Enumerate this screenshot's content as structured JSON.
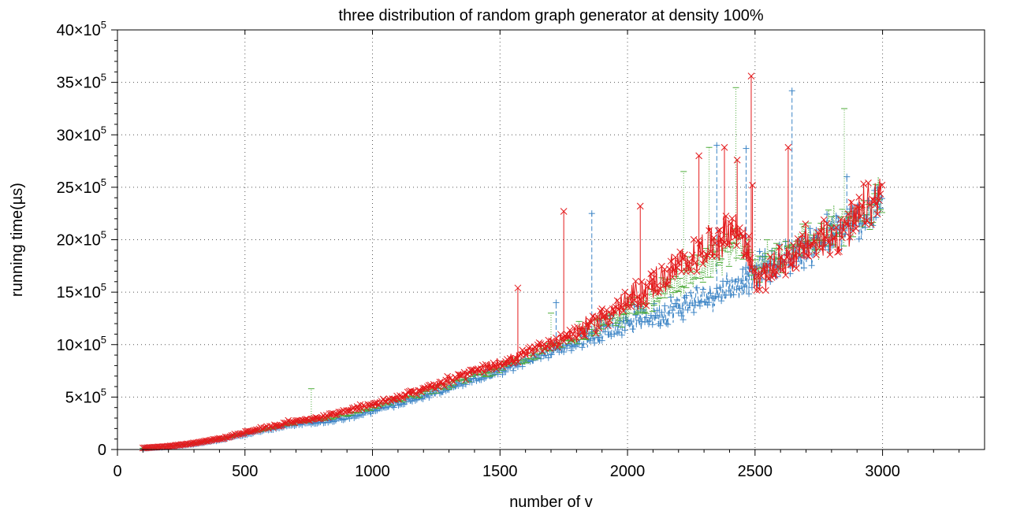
{
  "chart_data": {
    "type": "line",
    "title": "three distribution of random graph generator at density 100%",
    "xlabel": "number of v",
    "ylabel": "running time(µs)",
    "xlim": [
      0,
      3400
    ],
    "ylim": [
      0,
      4000000
    ],
    "x_ticks": [
      {
        "value": 0,
        "label": "0"
      },
      {
        "value": 500,
        "label": "500"
      },
      {
        "value": 1000,
        "label": "1000"
      },
      {
        "value": 1500,
        "label": "1500"
      },
      {
        "value": 2000,
        "label": "2000"
      },
      {
        "value": 2500,
        "label": "2500"
      },
      {
        "value": 3000,
        "label": "3000"
      }
    ],
    "y_ticks": [
      {
        "value": 0,
        "mantissa": "0",
        "exp": ""
      },
      {
        "value": 500000,
        "mantissa": "5×10",
        "exp": "5"
      },
      {
        "value": 1000000,
        "mantissa": "10×10",
        "exp": "5"
      },
      {
        "value": 1500000,
        "mantissa": "15×10",
        "exp": "5"
      },
      {
        "value": 2000000,
        "mantissa": "20×10",
        "exp": "5"
      },
      {
        "value": 2500000,
        "mantissa": "25×10",
        "exp": "5"
      },
      {
        "value": 3000000,
        "mantissa": "30×10",
        "exp": "5"
      },
      {
        "value": 3500000,
        "mantissa": "35×10",
        "exp": "5"
      },
      {
        "value": 4000000,
        "mantissa": "40×10",
        "exp": "5"
      }
    ],
    "grid": true,
    "legend": "none",
    "series": [
      {
        "color": "#3d85c6",
        "marker": "+",
        "line": "dashed",
        "x": [
          100,
          200,
          300,
          400,
          500,
          600,
          700,
          800,
          900,
          1000,
          1100,
          1200,
          1300,
          1400,
          1500,
          1600,
          1700,
          1800,
          1900,
          2000,
          2100,
          2200,
          2300,
          2400,
          2450,
          2500,
          2600,
          2700,
          2800,
          2900,
          3000
        ],
        "y": [
          10000,
          25000,
          50000,
          90000,
          140000,
          190000,
          240000,
          260000,
          300000,
          360000,
          430000,
          500000,
          580000,
          660000,
          740000,
          830000,
          920000,
          1010000,
          1110000,
          1200000,
          1250000,
          1330000,
          1420000,
          1520000,
          1590000,
          1650000,
          1770000,
          1880000,
          2000000,
          2130000,
          2300000
        ],
        "spikes": [
          {
            "x": 2350,
            "y": 2900000
          },
          {
            "x": 2465,
            "y": 2870000
          },
          {
            "x": 2645,
            "y": 3420000
          },
          {
            "x": 2860,
            "y": 2600000
          },
          {
            "x": 1860,
            "y": 2250000
          },
          {
            "x": 1720,
            "y": 1400000
          }
        ]
      },
      {
        "color": "#4eac3a",
        "marker": "_",
        "line": "dotted",
        "x": [
          100,
          200,
          300,
          400,
          500,
          600,
          700,
          800,
          900,
          1000,
          1100,
          1200,
          1300,
          1400,
          1500,
          1600,
          1700,
          1800,
          1900,
          2000,
          2100,
          2200,
          2300,
          2400,
          2450,
          2500,
          2600,
          2700,
          2800,
          2900,
          3000
        ],
        "y": [
          12000,
          28000,
          55000,
          95000,
          150000,
          200000,
          255000,
          280000,
          330000,
          390000,
          460000,
          535000,
          610000,
          690000,
          770000,
          860000,
          960000,
          1060000,
          1170000,
          1290000,
          1400000,
          1560000,
          1720000,
          1850000,
          1900000,
          1700000,
          1800000,
          1920000,
          2040000,
          2170000,
          2350000
        ],
        "spikes": [
          {
            "x": 2425,
            "y": 3450000
          },
          {
            "x": 2850,
            "y": 3250000
          },
          {
            "x": 2320,
            "y": 2880000
          },
          {
            "x": 760,
            "y": 580000
          },
          {
            "x": 1700,
            "y": 1300000
          },
          {
            "x": 2220,
            "y": 2650000
          }
        ]
      },
      {
        "color": "#e41a1c",
        "marker": "x",
        "line": "solid",
        "x": [
          100,
          200,
          300,
          400,
          500,
          600,
          700,
          800,
          900,
          1000,
          1100,
          1200,
          1300,
          1400,
          1500,
          1600,
          1700,
          1800,
          1900,
          2000,
          2100,
          2200,
          2300,
          2400,
          2450,
          2500,
          2600,
          2700,
          2800,
          2900,
          3000
        ],
        "y": [
          15000,
          30000,
          60000,
          100000,
          160000,
          215000,
          270000,
          300000,
          370000,
          420000,
          490000,
          570000,
          650000,
          730000,
          810000,
          900000,
          1000000,
          1100000,
          1230000,
          1380000,
          1540000,
          1700000,
          1880000,
          2050000,
          2020000,
          1600000,
          1750000,
          1900000,
          2000000,
          2150000,
          2400000
        ],
        "spikes": [
          {
            "x": 2485,
            "y": 3560000
          },
          {
            "x": 2380,
            "y": 2880000
          },
          {
            "x": 2630,
            "y": 2880000
          },
          {
            "x": 1750,
            "y": 2270000
          },
          {
            "x": 1570,
            "y": 1540000
          },
          {
            "x": 2430,
            "y": 2760000
          },
          {
            "x": 2280,
            "y": 2800000
          },
          {
            "x": 2050,
            "y": 2320000
          },
          {
            "x": 2490,
            "y": 2520000
          }
        ]
      }
    ]
  }
}
